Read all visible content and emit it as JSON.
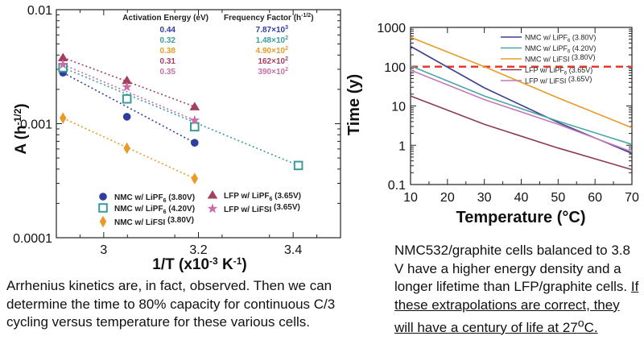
{
  "chart_data": [
    {
      "type": "scatter",
      "ylabel": "A (h",
      "ylabel_sup": "-1/2",
      "ylabel_end": ")",
      "xlabel": "1/T (x10",
      "xlabel_sup": "-3",
      "xlabel_mid": " K",
      "xlabel_sup2": "-1",
      "xlabel_end": ")",
      "y_scale": "log",
      "ylim": [
        0.0001,
        0.01
      ],
      "xlim": [
        2.9,
        3.5
      ],
      "y_ticks": [
        "0.01",
        "0.001",
        "0.0001"
      ],
      "x_ticks": [
        "3",
        "3.2",
        "3.4"
      ],
      "table_header_ea": "Activation Energy (eV)",
      "table_header_ff": "Frequency Factor (h",
      "table_header_ff_sup": "-1/2",
      "table_header_ff_end": ")",
      "series": [
        {
          "name": "NMC w/ LiPF6 (3.80V)",
          "legend_main": "NMC w/ LiPF",
          "legend_sub": "6",
          "legend_tail": " (3.80V)",
          "marker": "circle",
          "color": "#2f3e9e",
          "ea": "0.44",
          "ff": "7.87×10",
          "ff_sup": "3",
          "x": [
            2.914,
            3.049,
            3.192
          ],
          "y": [
            0.0028,
            0.00115,
            0.00068
          ]
        },
        {
          "name": "NMC w/ LiPF6 (4.20V)",
          "legend_main": "NMC w/ LiPF",
          "legend_sub": "6",
          "legend_tail": " (4.20V)",
          "marker": "square-open",
          "color": "#3a9c9a",
          "ea": "0.32",
          "ff": "1.48×10",
          "ff_sup": "2",
          "x": [
            2.914,
            3.049,
            3.192,
            3.411
          ],
          "y": [
            0.0031,
            0.00165,
            0.00094,
            0.00043
          ]
        },
        {
          "name": "NMC w/ LiFSI (3.80V)",
          "legend_main": "NMC w/ LiFSI",
          "legend_sub": "",
          "legend_tail": " (3.80V)",
          "marker": "diamond",
          "color": "#e89b28",
          "ea": "0.38",
          "ff": "4.90×10",
          "ff_sup": "2",
          "x": [
            2.914,
            3.049,
            3.192
          ],
          "y": [
            0.00112,
            0.00061,
            0.00033
          ]
        },
        {
          "name": "LFP w/ LiPF6 (3.65V)",
          "legend_main": "LFP w/ LiPF",
          "legend_sub": "6",
          "legend_tail": " (3.65V)",
          "marker": "triangle",
          "color": "#a3405e",
          "ea": "0.31",
          "ff": "162×10",
          "ff_sup": "2",
          "x": [
            2.914,
            3.049,
            3.192
          ],
          "y": [
            0.0038,
            0.0024,
            0.00141
          ]
        },
        {
          "name": "LFP w/ LiFSI (3.65V)",
          "legend_main": "LFP w/ LiFSI",
          "legend_sub": "",
          "legend_tail": " (3.65V)",
          "marker": "star",
          "color": "#c86fa8",
          "ea": "0.35",
          "ff": "390×10",
          "ff_sup": "2",
          "x": [
            2.914,
            3.049,
            3.192
          ],
          "y": [
            0.0033,
            0.0021,
            0.00107
          ]
        }
      ]
    },
    {
      "type": "line",
      "xlabel": "Temperature (°C)",
      "ylabel": "Time (y)",
      "y_scale": "log",
      "xlim": [
        10,
        70
      ],
      "ylim": [
        0.1,
        1000
      ],
      "x_ticks": [
        "10",
        "20",
        "30",
        "40",
        "50",
        "60",
        "70"
      ],
      "y_ticks": [
        "1000",
        "100",
        "10",
        "1",
        "0.1"
      ],
      "reference_line": {
        "y": 100,
        "x_end": 70,
        "color": "#e8392a",
        "style": "dashed"
      },
      "series": [
        {
          "name": "NMC w/ LiPF6 (3.80V)",
          "legend_main": "NMC w/ LiPF",
          "legend_sub": "6",
          "legend_tail": " (3.80V)",
          "color": "#3d3f8f",
          "x": [
            10,
            30,
            50,
            70
          ],
          "y": [
            330,
            29,
            3.8,
            0.62
          ]
        },
        {
          "name": "NMC w/ LiPF6 (4.20V)",
          "legend_main": "NMC w/ LiPF",
          "legend_sub": "6",
          "legend_tail": " (4.20V)",
          "color": "#4aa7a3",
          "x": [
            10,
            30,
            50,
            70
          ],
          "y": [
            105,
            18,
            4.1,
            1.05
          ]
        },
        {
          "name": "NMC w/ LiFSI (3.80V)",
          "legend_main": "NMC w/ LiFSI",
          "legend_sub": "",
          "legend_tail": " (3.80V)",
          "color": "#e89b28",
          "x": [
            10,
            30,
            50,
            70
          ],
          "y": [
            560,
            100,
            16,
            2.8
          ]
        },
        {
          "name": "LFP w/ LiPF6 (3.65V)",
          "legend_main": "LFP w/ LiPF",
          "legend_sub": "6",
          "legend_tail": " (3.65V)",
          "color": "#8b3a57",
          "x": [
            10,
            30,
            50,
            70
          ],
          "y": [
            18,
            3.4,
            0.85,
            0.24
          ]
        },
        {
          "name": "LFP w/ LiFSI (3.65V)",
          "legend_main": "LFP w/ LiFSI",
          "legend_sub": "",
          "legend_tail": " (3.65V)",
          "color": "#c47ab8",
          "x": [
            10,
            30,
            50,
            70
          ],
          "y": [
            82,
            14.5,
            3.4,
            0.68
          ]
        }
      ]
    }
  ],
  "captions": {
    "left": "Arrhenius kinetics are, in fact, observed.  Then we can determine the time to 80% capacity for continuous C/3 cycling versus temperature for these various cells.",
    "right_plain": "NMC532/graphite cells balanced to 3.8 V have a higher energy density and a longer lifetime than LFP/graphite cells. ",
    "right_underlined": "If these extrapolations are correct, they will have a century of life at 27",
    "right_sup": "o",
    "right_end": "C."
  }
}
